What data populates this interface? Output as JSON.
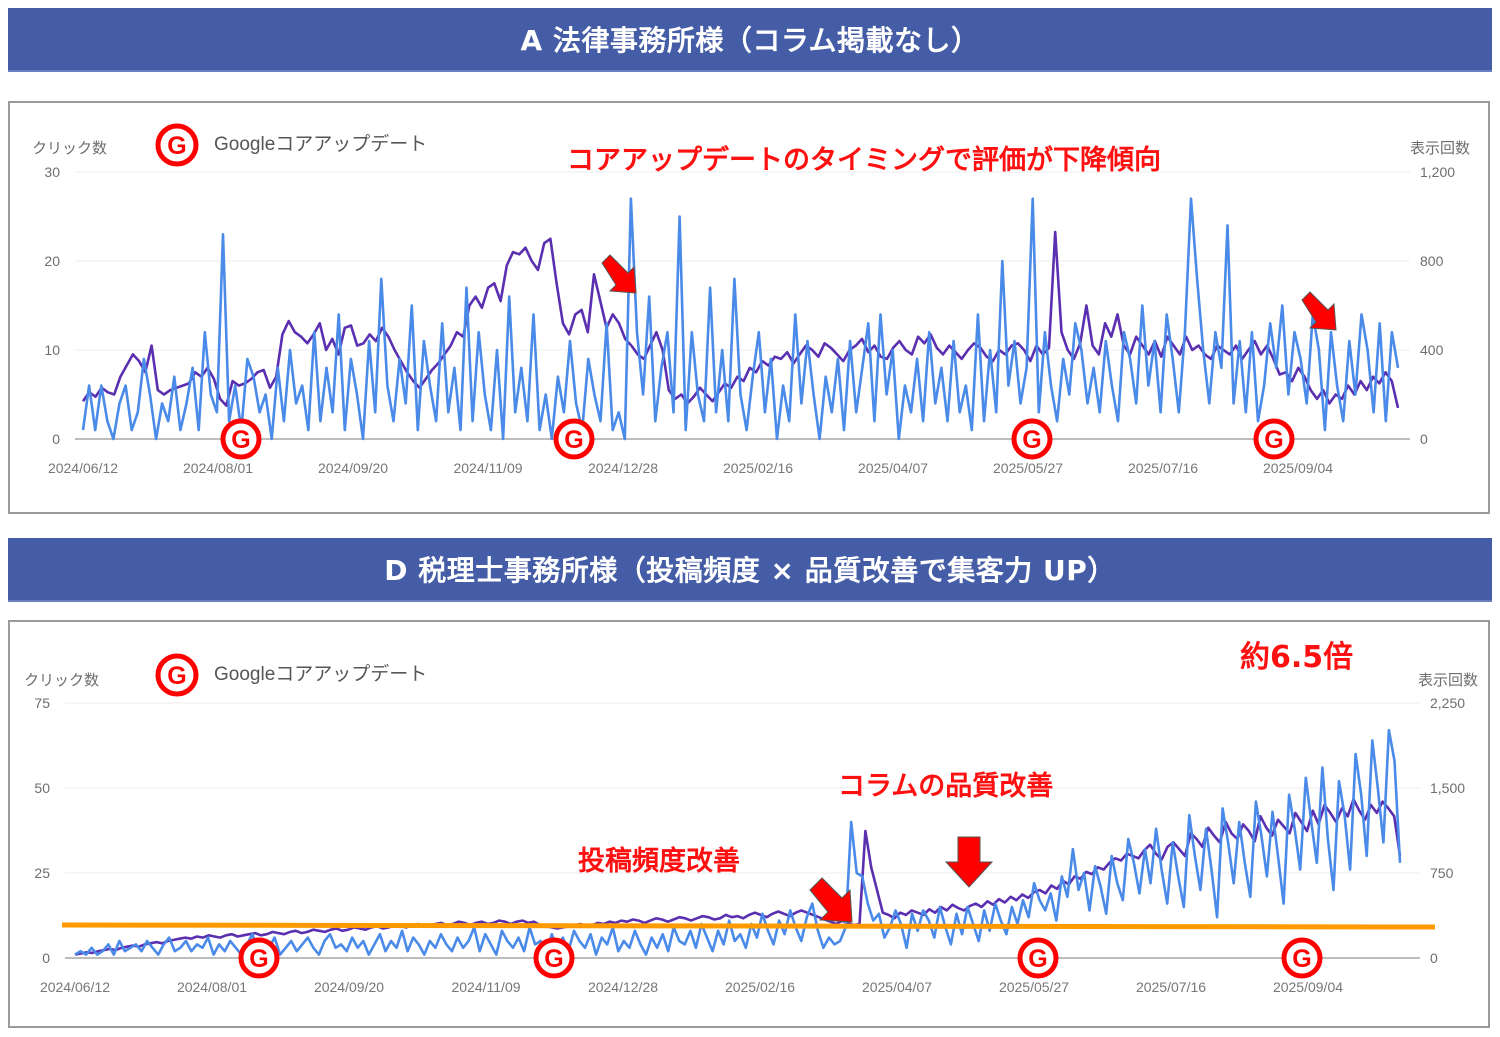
{
  "sections": [
    {
      "banner": "A 法律事務所様（コラム掲載なし）",
      "legend": "Googleコアアップデート",
      "left_axis_title": "クリック数",
      "right_axis_title": "表示回数",
      "annotation": "コアアップデートのタイミングで評価が下降傾向"
    },
    {
      "banner": "D 税理士事務所様（投稿頻度 × 品質改善で集客力 UP）",
      "legend": "Googleコアアップデート",
      "left_axis_title": "クリック数",
      "right_axis_title": "表示回数",
      "annotation_ratio": "約6.5倍",
      "annotation_quality": "コラムの品質改善",
      "annotation_frequency": "投稿頻度改善"
    }
  ],
  "colors": {
    "banner": "#445da6",
    "clicks_line": "#4a8ae8",
    "impressions_line": "#5a2fb0",
    "annotation_red": "#ff1010",
    "baseline_orange": "#ff9a00",
    "grid": "#e6e6e6"
  },
  "chart_data": [
    {
      "type": "line",
      "title": "A 法律事務所様（コラム掲載なし）",
      "xlabel": "",
      "ylabel": "クリック数",
      "ylabel_right": "表示回数",
      "ylim": [
        0,
        30
      ],
      "ylim_right": [
        0,
        1200
      ],
      "yticks": [
        "0",
        "10",
        "20",
        "30"
      ],
      "yticks_right": [
        "0",
        "400",
        "800",
        "1,200"
      ],
      "x_ticks": [
        "2024/06/12",
        "2024/08/01",
        "2024/09/20",
        "2024/11/09",
        "2024/12/28",
        "2025/02/16",
        "2025/04/07",
        "2025/05/27",
        "2025/07/16",
        "2025/09/04"
      ],
      "core_updates": [
        "2024/08/15",
        "2024/11/12",
        "2025/06/30",
        "2025/08/28"
      ],
      "annotation": "コアアップデートのタイミングで評価が下降傾向",
      "series": [
        {
          "name": "クリック数",
          "axis": "left",
          "color": "#4a8ae8",
          "values": [
            1,
            6,
            1,
            6,
            2,
            0,
            4,
            6,
            1,
            3,
            9,
            5,
            0,
            4,
            2,
            7,
            1,
            4,
            8,
            1,
            12,
            5,
            3,
            23,
            2,
            6,
            1,
            9,
            7,
            3,
            5,
            0,
            8,
            2,
            10,
            4,
            6,
            1,
            12,
            2,
            8,
            3,
            14,
            1,
            9,
            5,
            0,
            11,
            3,
            18,
            6,
            2,
            9,
            4,
            15,
            1,
            11,
            6,
            2,
            13,
            3,
            8,
            1,
            17,
            2,
            12,
            5,
            1,
            10,
            0,
            16,
            3,
            8,
            2,
            14,
            1,
            5,
            0,
            7,
            3,
            11,
            4,
            1,
            9,
            5,
            2,
            13,
            1,
            3,
            0,
            27,
            12,
            5,
            16,
            2,
            8,
            12,
            3,
            25,
            1,
            12,
            5,
            2,
            17,
            3,
            10,
            2,
            18,
            5,
            1,
            7,
            12,
            3,
            9,
            0,
            6,
            2,
            14,
            4,
            11,
            5,
            0,
            7,
            3,
            9,
            1,
            11,
            3,
            8,
            13,
            2,
            14,
            5,
            10,
            0,
            6,
            3,
            9,
            2,
            12,
            4,
            8,
            2,
            11,
            3,
            6,
            1,
            14,
            2,
            10,
            3,
            20,
            6,
            11,
            4,
            8,
            27,
            3,
            12,
            6,
            2,
            9,
            5,
            13,
            10,
            4,
            8,
            3,
            11,
            6,
            2,
            12,
            9,
            4,
            15,
            6,
            11,
            3,
            14,
            9,
            3,
            12,
            27,
            18,
            10,
            4,
            12,
            8,
            24,
            4,
            11,
            3,
            12,
            2,
            6,
            13,
            8,
            15,
            5,
            12,
            9,
            4,
            14,
            10,
            1,
            12,
            6,
            2,
            11,
            5,
            14,
            10,
            3,
            13,
            2,
            12,
            8
          ],
          "note": "approximate visual reading"
        },
        {
          "name": "表示回数",
          "axis": "right",
          "color": "#5a2fb0",
          "values": [
            170,
            210,
            190,
            230,
            210,
            200,
            280,
            330,
            380,
            350,
            300,
            420,
            220,
            200,
            220,
            230,
            240,
            250,
            300,
            280,
            320,
            270,
            180,
            150,
            260,
            240,
            250,
            270,
            300,
            310,
            230,
            280,
            470,
            530,
            480,
            460,
            430,
            470,
            520,
            400,
            450,
            380,
            500,
            510,
            420,
            430,
            470,
            440,
            500,
            460,
            400,
            350,
            300,
            260,
            230,
            270,
            310,
            340,
            380,
            420,
            480,
            460,
            600,
            640,
            590,
            680,
            700,
            620,
            780,
            840,
            830,
            860,
            800,
            760,
            880,
            900,
            700,
            520,
            470,
            560,
            580,
            480,
            740,
            620,
            500,
            560,
            520,
            450,
            420,
            380,
            360,
            420,
            480,
            400,
            220,
            180,
            200,
            160,
            190,
            230,
            200,
            170,
            210,
            250,
            230,
            280,
            260,
            320,
            300,
            350,
            330,
            370,
            360,
            390,
            340,
            380,
            420,
            400,
            370,
            430,
            410,
            380,
            350,
            400,
            420,
            450,
            390,
            420,
            370,
            360,
            410,
            440,
            400,
            380,
            460,
            430,
            470,
            410,
            380,
            420,
            390,
            360,
            400,
            430,
            410,
            370,
            350,
            400,
            380,
            420,
            430,
            400,
            350,
            420,
            380,
            410,
            930,
            480,
            400,
            360,
            430,
            600,
            420,
            380,
            520,
            460,
            560,
            420,
            380,
            460,
            420,
            380,
            440,
            370,
            460,
            420,
            380,
            460,
            400,
            420,
            380,
            360,
            420,
            400,
            380,
            420,
            360,
            400,
            440,
            380,
            420,
            360,
            290,
            300,
            260,
            320,
            280,
            220,
            180,
            220,
            160,
            200,
            180,
            240,
            200,
            260,
            220,
            280,
            250,
            300,
            260,
            140
          ]
        }
      ]
    },
    {
      "type": "line",
      "title": "D 税理士事務所様（投稿頻度 × 品質改善で集客力 UP）",
      "xlabel": "",
      "ylabel": "クリック数",
      "ylabel_right": "表示回数",
      "ylim": [
        0,
        75
      ],
      "ylim_right": [
        0,
        2250
      ],
      "yticks": [
        "0",
        "25",
        "50",
        "75"
      ],
      "yticks_right": [
        "0",
        "750",
        "1,500",
        "2,250"
      ],
      "x_ticks": [
        "2024/06/12",
        "2024/08/01",
        "2024/09/20",
        "2024/11/09",
        "2024/12/28",
        "2025/02/16",
        "2025/04/07",
        "2025/05/27",
        "2025/07/16",
        "2025/09/04"
      ],
      "core_updates": [
        "2024/08/15",
        "2024/11/12",
        "2025/06/30",
        "2025/08/28"
      ],
      "baseline": {
        "label": "orange reference line",
        "value_left": 10
      },
      "annotations": [
        "約6.5倍",
        "コラムの品質改善",
        "投稿頻度改善"
      ],
      "series": [
        {
          "name": "クリック数",
          "axis": "left",
          "color": "#4a8ae8",
          "values": [
            1,
            2,
            1,
            3,
            1,
            2,
            4,
            1,
            5,
            2,
            3,
            4,
            2,
            5,
            3,
            1,
            4,
            6,
            2,
            3,
            5,
            2,
            4,
            3,
            6,
            1,
            4,
            2,
            5,
            3,
            1,
            4,
            7,
            2,
            5,
            3,
            6,
            1,
            3,
            5,
            2,
            4,
            6,
            3,
            1,
            5,
            7,
            3,
            4,
            2,
            6,
            3,
            5,
            1,
            4,
            7,
            2,
            5,
            3,
            8,
            2,
            6,
            4,
            1,
            5,
            3,
            7,
            4,
            2,
            6,
            3,
            5,
            9,
            2,
            7,
            4,
            1,
            8,
            5,
            3,
            6,
            2,
            9,
            4,
            5,
            1,
            7,
            3,
            6,
            2,
            8,
            5,
            3,
            7,
            1,
            6,
            4,
            9,
            2,
            5,
            3,
            8,
            4,
            1,
            6,
            3,
            7,
            2,
            9,
            5,
            4,
            8,
            3,
            10,
            6,
            2,
            8,
            4,
            11,
            5,
            7,
            3,
            10,
            6,
            13,
            8,
            4,
            11,
            7,
            14,
            9,
            5,
            12,
            16,
            8,
            3,
            6,
            4,
            5,
            9,
            40,
            25,
            24,
            16,
            11,
            13,
            6,
            9,
            14,
            10,
            3,
            13,
            8,
            14,
            11,
            6,
            15,
            9,
            4,
            13,
            7,
            15,
            10,
            5,
            14,
            8,
            16,
            11,
            7,
            15,
            10,
            17,
            12,
            22,
            17,
            14,
            19,
            11,
            24,
            18,
            32,
            20,
            25,
            14,
            27,
            21,
            13,
            30,
            22,
            17,
            35,
            28,
            19,
            32,
            22,
            38,
            26,
            16,
            34,
            24,
            15,
            42,
            30,
            20,
            38,
            26,
            12,
            44,
            34,
            22,
            40,
            28,
            18,
            46,
            36,
            24,
            43,
            30,
            16,
            48,
            38,
            26,
            53,
            40,
            28,
            56,
            35,
            20,
            52,
            42,
            26,
            60,
            48,
            30,
            64,
            50,
            34,
            67,
            58,
            28
          ]
        },
        {
          "name": "表示回数",
          "axis": "right",
          "color": "#5a2fb0",
          "values": [
            30,
            40,
            50,
            45,
            60,
            70,
            80,
            70,
            90,
            100,
            110,
            100,
            120,
            130,
            140,
            130,
            150,
            160,
            170,
            180,
            170,
            190,
            180,
            200,
            190,
            180,
            200,
            210,
            190,
            200,
            210,
            220,
            200,
            210,
            230,
            220,
            210,
            230,
            240,
            220,
            230,
            250,
            240,
            230,
            250,
            260,
            240,
            250,
            270,
            260,
            250,
            270,
            280,
            260,
            270,
            290,
            280,
            270,
            290,
            300,
            280,
            290,
            300,
            310,
            290,
            300,
            320,
            310,
            290,
            310,
            320,
            300,
            310,
            330,
            320,
            300,
            320,
            330,
            310,
            320,
            290,
            280,
            270,
            260,
            270,
            280,
            290,
            300,
            280,
            290,
            310,
            300,
            320,
            310,
            330,
            320,
            340,
            330,
            310,
            330,
            350,
            340,
            320,
            340,
            360,
            350,
            330,
            350,
            370,
            360,
            340,
            350,
            380,
            360,
            370,
            350,
            380,
            400,
            380,
            360,
            390,
            410,
            390,
            370,
            400,
            420,
            400,
            380,
            360,
            340,
            320,
            300,
            330,
            310,
            290,
            300,
            1120,
            800,
            600,
            400,
            380,
            350,
            400,
            380,
            420,
            400,
            380,
            430,
            400,
            450,
            420,
            470,
            440,
            420,
            460,
            480,
            450,
            500,
            470,
            520,
            490,
            540,
            510,
            560,
            530,
            580,
            600,
            570,
            640,
            610,
            680,
            650,
            720,
            700,
            760,
            740,
            800,
            780,
            840,
            880,
            860,
            920,
            900,
            880,
            950,
            1000,
            920,
            870,
            980,
            1020,
            960,
            900,
            1100,
            1050,
            980,
            1150,
            1080,
            1020,
            1200,
            1100,
            1050,
            1180,
            1120,
            1030,
            1250,
            1150,
            1080,
            1220,
            1160,
            1100,
            1280,
            1200,
            1120,
            1300,
            1180,
            1350,
            1280,
            1200,
            1320,
            1250,
            1400,
            1300,
            1220,
            1350,
            1280,
            1380,
            1320,
            1250,
            900
          ]
        }
      ]
    }
  ]
}
